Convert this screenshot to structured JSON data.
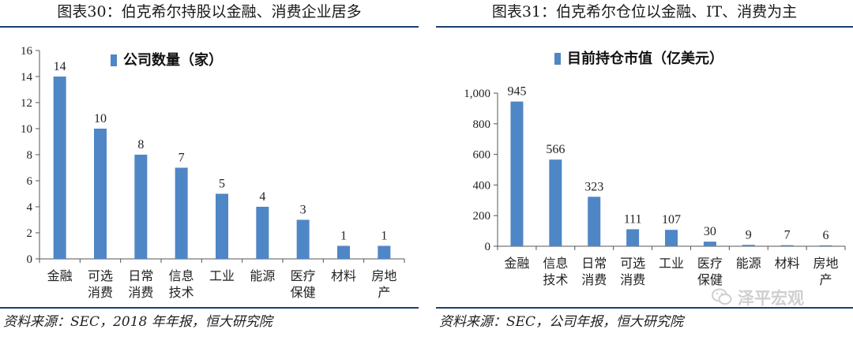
{
  "chart_data": [
    {
      "type": "bar",
      "title": "图表30：伯克希尔持股以金融、消费企业居多",
      "source": "资料来源：SEC，2018 年年报，恒大研究院",
      "series": [
        {
          "name": "公司数量（家）",
          "values": [
            14,
            10,
            8,
            7,
            5,
            4,
            3,
            1,
            1
          ]
        }
      ],
      "categories": [
        [
          "金融"
        ],
        [
          "可选",
          "消费"
        ],
        [
          "日常",
          "消费"
        ],
        [
          "信息",
          "技术"
        ],
        [
          "工业"
        ],
        [
          "能源"
        ],
        [
          "医疗",
          "保健"
        ],
        [
          "材料"
        ],
        [
          "房地",
          "产"
        ]
      ],
      "value_labels": [
        "14",
        "10",
        "8",
        "7",
        "5",
        "4",
        "3",
        "1",
        "1"
      ],
      "ylim": [
        0,
        16
      ],
      "yticks": [
        "0",
        "2",
        "4",
        "6",
        "8",
        "10",
        "12",
        "14",
        "16"
      ],
      "ytick_values": [
        0,
        2,
        4,
        6,
        8,
        10,
        12,
        14,
        16
      ],
      "legend_position": "top",
      "grid": false,
      "bar_color": "#4f86c6"
    },
    {
      "type": "bar",
      "title": "图表31：伯克希尔仓位以金融、IT、消费为主",
      "source": "资料来源：SEC，公司年报，恒大研究院",
      "series": [
        {
          "name": "目前持仓市值（亿美元）",
          "values": [
            945,
            566,
            323,
            111,
            107,
            30,
            9,
            7,
            6
          ]
        }
      ],
      "categories": [
        [
          "金融"
        ],
        [
          "信息",
          "技术"
        ],
        [
          "日常",
          "消费"
        ],
        [
          "可选",
          "消费"
        ],
        [
          "工业"
        ],
        [
          "医疗",
          "保健"
        ],
        [
          "能源"
        ],
        [
          "材料"
        ],
        [
          "房地",
          "产"
        ]
      ],
      "value_labels": [
        "945",
        "566",
        "323",
        "111",
        "107",
        "30",
        "9",
        "7",
        "6"
      ],
      "ylim": [
        0,
        1000
      ],
      "yticks": [
        "0",
        "200",
        "400",
        "600",
        "800",
        "1,000"
      ],
      "ytick_values": [
        0,
        200,
        400,
        600,
        800,
        1000
      ],
      "legend_position": "top",
      "grid": false,
      "bar_color": "#4f86c6"
    }
  ],
  "watermark": {
    "text": "泽平宏观",
    "icon": "wechat-icon"
  }
}
